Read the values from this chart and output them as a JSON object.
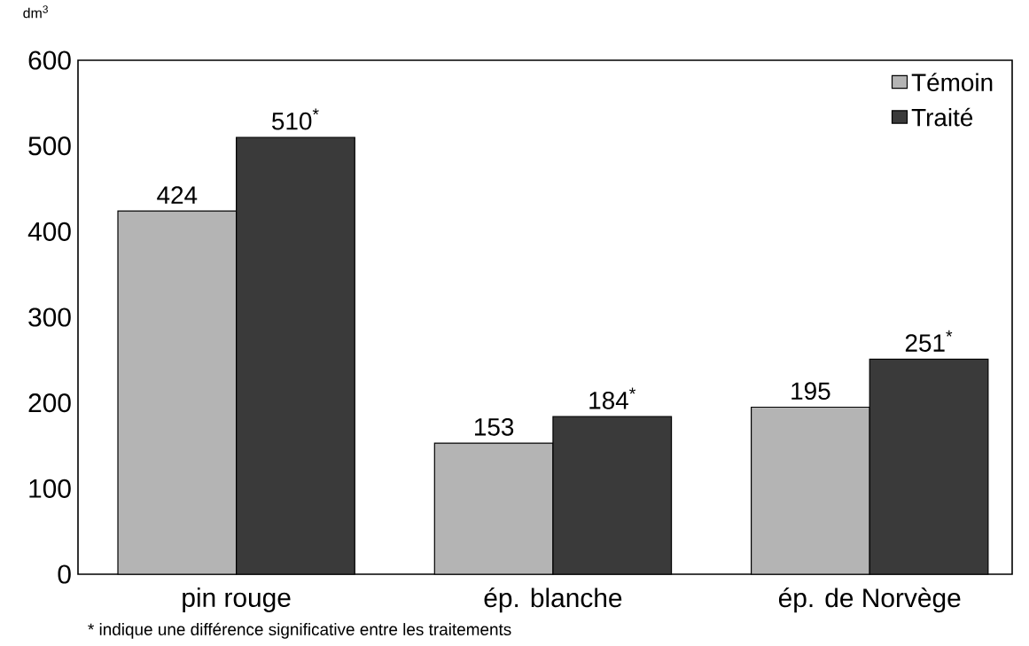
{
  "chart_data": {
    "type": "bar",
    "ylabel": "dm$^{3}$",
    "categories": [
      "pin rouge",
      "ép. blanche",
      "ép. de Norvège"
    ],
    "series": [
      {
        "name": "Témoin",
        "color": "#b4b4b4",
        "values": [
          424,
          153,
          195
        ],
        "value_labels": [
          "424",
          "153",
          "195"
        ]
      },
      {
        "name": "Traité",
        "color": "#3a3a3a",
        "values": [
          510,
          184,
          251
        ],
        "value_labels": [
          "510$^{*}$",
          "184$^{*}$",
          "251$^{*}$"
        ]
      }
    ],
    "ylim": [
      0,
      600
    ],
    "yticks": [
      0,
      100,
      200,
      300,
      400,
      500,
      600
    ],
    "legend": "top right",
    "annotations": [
      "* indique une différence significative entre les traitements"
    ]
  }
}
